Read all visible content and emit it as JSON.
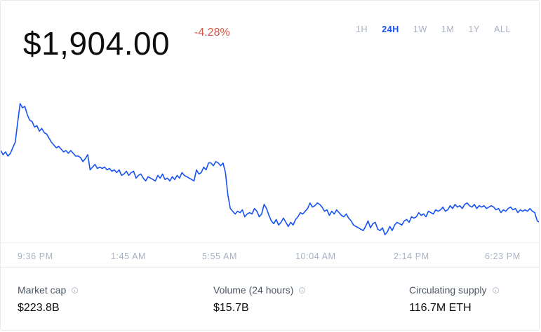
{
  "price": "$1,904.00",
  "change": "-4.28%",
  "colors": {
    "line": "#1652f0",
    "negative": "#d2594a",
    "muted": "#a7b1c2"
  },
  "ranges": [
    {
      "label": "1H",
      "active": false
    },
    {
      "label": "24H",
      "active": true
    },
    {
      "label": "1W",
      "active": false
    },
    {
      "label": "1M",
      "active": false
    },
    {
      "label": "1Y",
      "active": false
    },
    {
      "label": "ALL",
      "active": false
    }
  ],
  "chart_data": {
    "type": "line",
    "x_ticks": [
      "9:36 PM",
      "1:45 AM",
      "5:55 AM",
      "10:04 AM",
      "2:14 PM",
      "6:23 PM"
    ],
    "ylim": [
      0,
      100
    ],
    "values": [
      64,
      61,
      63,
      60,
      62,
      66,
      70,
      84,
      98,
      95,
      96,
      90,
      86,
      85,
      81,
      82,
      78,
      80,
      77,
      76,
      73,
      70,
      68,
      66,
      67,
      65,
      63,
      64,
      62,
      64,
      62,
      60,
      60,
      59,
      56,
      58,
      61,
      50,
      52,
      54,
      51,
      52,
      51,
      52,
      50,
      51,
      49,
      50,
      48,
      50,
      46,
      47,
      49,
      46,
      48,
      49,
      44,
      46,
      47,
      44,
      42,
      45,
      44,
      43,
      42,
      46,
      44,
      47,
      43,
      44,
      42,
      45,
      43,
      46,
      44,
      48,
      46,
      45,
      44,
      43,
      42,
      50,
      47,
      48,
      52,
      50,
      55,
      55,
      53,
      56,
      55,
      53,
      55,
      48,
      32,
      22,
      20,
      18,
      20,
      19,
      21,
      16,
      18,
      19,
      18,
      22,
      20,
      16,
      18,
      25,
      22,
      17,
      13,
      11,
      14,
      10,
      12,
      15,
      12,
      9,
      12,
      10,
      14,
      16,
      19,
      18,
      20,
      22,
      26,
      23,
      24,
      26,
      25,
      23,
      20,
      21,
      17,
      20,
      18,
      21,
      19,
      17,
      16,
      18,
      15,
      13,
      10,
      9,
      8,
      7,
      6,
      9,
      13,
      8,
      11,
      12,
      7,
      6,
      8,
      3,
      5,
      9,
      6,
      10,
      12,
      11,
      10,
      13,
      14,
      12,
      16,
      15,
      16,
      19,
      17,
      18,
      16,
      20,
      19,
      18,
      21,
      20,
      21,
      23,
      20,
      21,
      24,
      22,
      25,
      23,
      24,
      22,
      25,
      26,
      24,
      23,
      25,
      22,
      24,
      23,
      24,
      22,
      23,
      24,
      23,
      21,
      22,
      19,
      21,
      20,
      22,
      23,
      21,
      22,
      19,
      21,
      20,
      21,
      20,
      22,
      20,
      19,
      13,
      12
    ]
  },
  "stats": [
    {
      "label": "Market cap",
      "value": "$223.8B"
    },
    {
      "label": "Volume (24 hours)",
      "value": "$15.7B"
    },
    {
      "label": "Circulating supply",
      "value": "116.7M ETH"
    }
  ]
}
